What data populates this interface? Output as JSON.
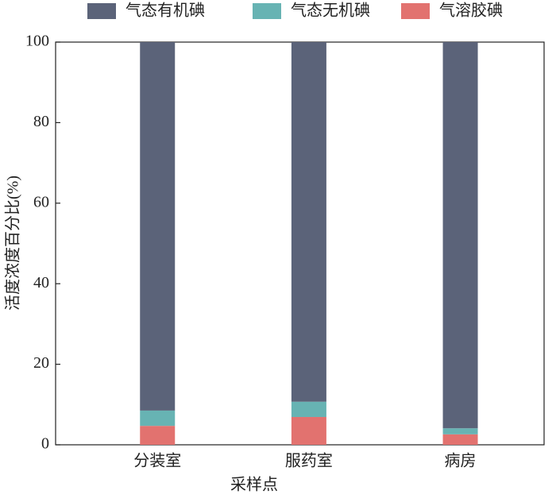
{
  "chart_data": {
    "type": "stacked_bar",
    "x_label": "采样点",
    "y_label": "活度浓度百分比(%)",
    "categories": [
      "分装室",
      "服药室",
      "病房"
    ],
    "series": [
      {
        "name": "气态有机碘",
        "color": "#5b6379",
        "values": [
          91.5,
          89.3,
          95.9
        ]
      },
      {
        "name": "气态无机碘",
        "color": "#67b3b3",
        "values": [
          3.8,
          3.8,
          1.5
        ]
      },
      {
        "name": "气溶胶碘",
        "color": "#e2726f",
        "values": [
          4.7,
          6.9,
          2.6
        ]
      }
    ],
    "ylim": [
      0,
      100
    ],
    "yticks": [
      0,
      20,
      40,
      60,
      80,
      100
    ],
    "grid": false
  }
}
